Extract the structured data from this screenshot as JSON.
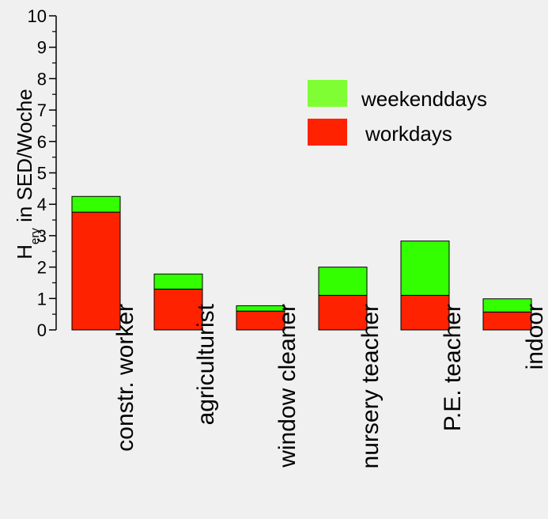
{
  "chart_data": {
    "type": "bar",
    "stacked": true,
    "categories": [
      "constr. worker",
      "agriculturist",
      "window cleaner",
      "nursery teacher",
      "P.E. teacher",
      "indoor"
    ],
    "series": [
      {
        "name": "workdays",
        "color": "#ff2200",
        "values": [
          3.75,
          1.3,
          0.6,
          1.1,
          1.1,
          0.57
        ]
      },
      {
        "name": "weekenddays",
        "color": "#33ff00",
        "values": [
          0.5,
          0.48,
          0.17,
          0.9,
          1.73,
          0.42
        ]
      }
    ],
    "ylabel": "H_ery in SED/Woche",
    "ylabel_main": "H",
    "ylabel_sub": "ery",
    "ylabel_rest": " in SED/Woche",
    "ylim": [
      0,
      10
    ],
    "yticks": [
      "0",
      "1",
      "2",
      "3",
      "4",
      "5",
      "6",
      "7",
      "8",
      "9",
      "10"
    ],
    "legend": {
      "position": "top-right",
      "items": [
        {
          "label": "weekenddays",
          "color": "#7fff33"
        },
        {
          "label": "workdays",
          "color": "#ff2200"
        }
      ]
    }
  }
}
